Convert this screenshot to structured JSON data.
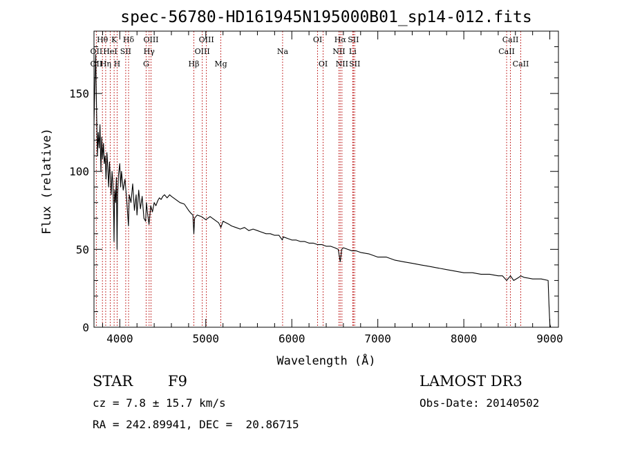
{
  "chart_data": {
    "type": "line",
    "title": "spec-56780-HD161945N195000B01_sp14-012.fits",
    "xlabel": "Wavelength (Å)",
    "ylabel": "Flux (relative)",
    "xlim": [
      3700,
      9100
    ],
    "ylim": [
      0,
      190
    ],
    "xticks": [
      4000,
      5000,
      6000,
      7000,
      8000,
      9000
    ],
    "yticks": [
      0,
      50,
      100,
      150
    ],
    "series": [
      {
        "name": "flux",
        "x": [
          3700,
          3710,
          3720,
          3730,
          3740,
          3750,
          3760,
          3770,
          3780,
          3790,
          3800,
          3810,
          3820,
          3830,
          3840,
          3850,
          3860,
          3870,
          3880,
          3890,
          3900,
          3910,
          3920,
          3930,
          3933,
          3940,
          3950,
          3960,
          3968,
          3975,
          3985,
          4000,
          4010,
          4020,
          4040,
          4060,
          4080,
          4101,
          4110,
          4130,
          4150,
          4170,
          4190,
          4200,
          4220,
          4240,
          4260,
          4280,
          4300,
          4310,
          4320,
          4340,
          4350,
          4360,
          4380,
          4400,
          4420,
          4440,
          4460,
          4480,
          4500,
          4520,
          4550,
          4580,
          4600,
          4650,
          4700,
          4750,
          4800,
          4830,
          4850,
          4861,
          4870,
          4900,
          4950,
          5000,
          5050,
          5100,
          5150,
          5175,
          5200,
          5270,
          5300,
          5350,
          5400,
          5450,
          5500,
          5550,
          5600,
          5650,
          5700,
          5750,
          5800,
          5850,
          5890,
          5900,
          5950,
          6000,
          6050,
          6100,
          6150,
          6200,
          6250,
          6300,
          6350,
          6400,
          6450,
          6500,
          6540,
          6563,
          6580,
          6600,
          6650,
          6700,
          6750,
          6800,
          6900,
          7000,
          7100,
          7200,
          7300,
          7400,
          7500,
          7600,
          7700,
          7800,
          7900,
          8000,
          8100,
          8200,
          8300,
          8400,
          8450,
          8498,
          8542,
          8580,
          8640,
          8662,
          8700,
          8800,
          8900,
          8980,
          8990,
          9000,
          9010
        ],
        "values": [
          130,
          155,
          175,
          140,
          110,
          125,
          115,
          130,
          100,
          122,
          108,
          118,
          105,
          110,
          95,
          112,
          103,
          90,
          106,
          96,
          85,
          100,
          92,
          70,
          55,
          88,
          80,
          96,
          50,
          85,
          98,
          105,
          90,
          100,
          88,
          95,
          82,
          65,
          85,
          80,
          92,
          75,
          85,
          72,
          88,
          76,
          84,
          70,
          68,
          80,
          74,
          66,
          72,
          78,
          74,
          80,
          78,
          81,
          83,
          82,
          84,
          85,
          83,
          85,
          84,
          82,
          80,
          79,
          75,
          73,
          72,
          60,
          70,
          72,
          71,
          69,
          71,
          69,
          67,
          64,
          68,
          66,
          65,
          64,
          63,
          64,
          62,
          63,
          62,
          61,
          60,
          60,
          59,
          59,
          56,
          58,
          57,
          56,
          56,
          55,
          55,
          54,
          54,
          53,
          53,
          52,
          52,
          51,
          50,
          42,
          50,
          51,
          50,
          49,
          49,
          48,
          47,
          45,
          45,
          43,
          42,
          41,
          40,
          39,
          38,
          37,
          36,
          35,
          35,
          34,
          34,
          33,
          33,
          30,
          33,
          30,
          32,
          33,
          32,
          31,
          31,
          30,
          15,
          2,
          0
        ]
      }
    ],
    "lines": [
      {
        "label": "OII",
        "wave": 3727,
        "row": 2
      },
      {
        "label": "OII",
        "wave": 3727,
        "row": 3
      },
      {
        "label": "Hθ",
        "wave": 3798,
        "row": 1
      },
      {
        "label": "Hη",
        "wave": 3836,
        "row": 3
      },
      {
        "label": "HeI",
        "wave": 3889,
        "row": 2
      },
      {
        "label": "K",
        "wave": 3934,
        "row": 1
      },
      {
        "label": "SII",
        "wave": 4069,
        "row": 2
      },
      {
        "label": "H",
        "wave": 3969,
        "row": 3
      },
      {
        "label": "Hδ",
        "wave": 4102,
        "row": 1
      },
      {
        "label": "G",
        "wave": 4306,
        "row": 3
      },
      {
        "label": "Hγ",
        "wave": 4341,
        "row": 2
      },
      {
        "label": "OIII",
        "wave": 4363,
        "row": 1
      },
      {
        "label": "Hβ",
        "wave": 4861,
        "row": 3
      },
      {
        "label": "OIII",
        "wave": 4959,
        "row": 2
      },
      {
        "label": "OIII",
        "wave": 5007,
        "row": 1
      },
      {
        "label": "Mg",
        "wave": 5175,
        "row": 3
      },
      {
        "label": "Na",
        "wave": 5893,
        "row": 2
      },
      {
        "label": "OI",
        "wave": 6300,
        "row": 1
      },
      {
        "label": "OI",
        "wave": 6364,
        "row": 3
      },
      {
        "label": "NII",
        "wave": 6548,
        "row": 2
      },
      {
        "label": "Hα",
        "wave": 6563,
        "row": 1
      },
      {
        "label": "NII",
        "wave": 6583,
        "row": 3
      },
      {
        "label": "SII",
        "wave": 6716,
        "row": 1
      },
      {
        "label": "Li",
        "wave": 6708,
        "row": 2
      },
      {
        "label": "SII",
        "wave": 6731,
        "row": 3
      },
      {
        "label": "CaII",
        "wave": 8498,
        "row": 2
      },
      {
        "label": "CaII",
        "wave": 8542,
        "row": 1
      },
      {
        "label": "CaII",
        "wave": 8662,
        "row": 3
      }
    ]
  },
  "footer": {
    "object_type": "STAR",
    "subclass": "F9",
    "survey": "LAMOST DR3",
    "velocity": "cz = 7.8 ± 15.7 km/s",
    "obs_date": "Obs-Date: 20140502",
    "coords": "RA = 242.89941, DEC =  20.86715"
  }
}
